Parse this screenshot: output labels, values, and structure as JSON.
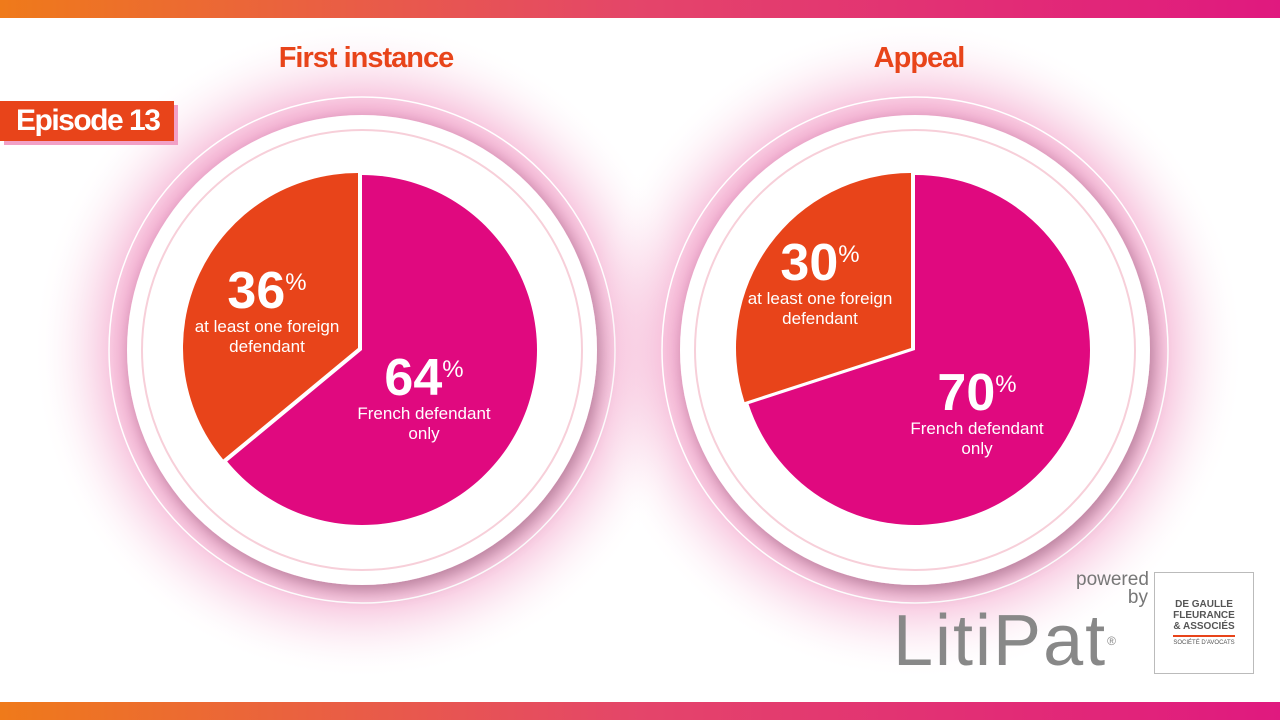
{
  "badge": "Episode 13",
  "colors": {
    "french": "#e0097f",
    "foreign": "#e8441a",
    "title": "#e8441a"
  },
  "chart_data": [
    {
      "type": "pie",
      "title": "First instance",
      "slices": [
        {
          "label": "French defendant only",
          "value": 64,
          "display": "64",
          "color": "#e0097f"
        },
        {
          "label": "at least one foreign defendant",
          "value": 36,
          "display": "36",
          "color": "#e8441a"
        }
      ],
      "unit": "%"
    },
    {
      "type": "pie",
      "title": "Appeal",
      "slices": [
        {
          "label": "French defendant only",
          "value": 70,
          "display": "70",
          "color": "#e0097f"
        },
        {
          "label": "at least one foreign defendant",
          "value": 30,
          "display": "30",
          "color": "#e8441a"
        }
      ],
      "unit": "%"
    }
  ],
  "branding": {
    "powered_by": "powered by",
    "product": "LitiPat",
    "registered": "®",
    "firm_lines": [
      "DE GAULLE",
      "FLEURANCE",
      "& ASSOCIÉS"
    ],
    "firm_tagline": "SOCIÉTÉ D'AVOCATS"
  }
}
